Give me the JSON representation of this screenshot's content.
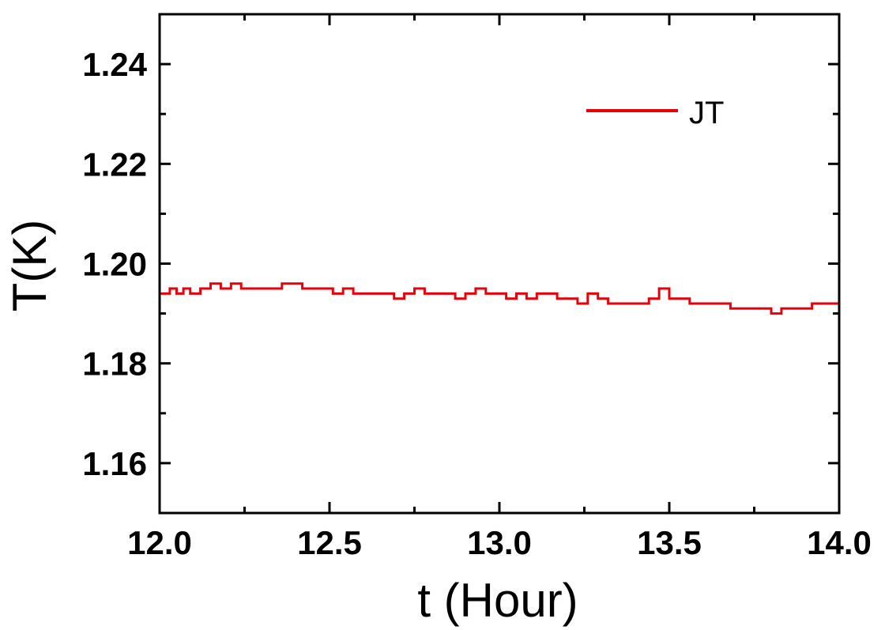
{
  "chart_data": {
    "type": "line",
    "title": "",
    "xlabel": "t (Hour)",
    "ylabel": "T(K)",
    "xlim": [
      12.0,
      14.0
    ],
    "ylim": [
      1.15,
      1.25
    ],
    "x_ticks": [
      12.0,
      12.5,
      13.0,
      13.5,
      14.0
    ],
    "x_tick_labels": [
      "12.0",
      "12.5",
      "13.0",
      "13.5",
      "14.0"
    ],
    "y_ticks": [
      1.16,
      1.18,
      1.2,
      1.22,
      1.24
    ],
    "y_tick_labels": [
      "1.16",
      "1.18",
      "1.20",
      "1.22",
      "1.24"
    ],
    "grid": false,
    "legend_position": "top-right",
    "series": [
      {
        "name": "JT",
        "color": "#e8000b",
        "step": true,
        "x": [
          12.0,
          12.03,
          12.05,
          12.07,
          12.09,
          12.12,
          12.15,
          12.18,
          12.21,
          12.24,
          12.27,
          12.3,
          12.33,
          12.36,
          12.39,
          12.42,
          12.45,
          12.48,
          12.51,
          12.54,
          12.57,
          12.6,
          12.63,
          12.66,
          12.69,
          12.72,
          12.75,
          12.78,
          12.81,
          12.84,
          12.87,
          12.9,
          12.93,
          12.96,
          12.99,
          13.02,
          13.05,
          13.08,
          13.11,
          13.14,
          13.17,
          13.2,
          13.23,
          13.26,
          13.29,
          13.32,
          13.35,
          13.38,
          13.41,
          13.44,
          13.47,
          13.5,
          13.53,
          13.56,
          13.59,
          13.62,
          13.65,
          13.68,
          13.71,
          13.74,
          13.77,
          13.8,
          13.83,
          13.86,
          13.89,
          13.92,
          13.95,
          13.98,
          14.0
        ],
        "y": [
          1.194,
          1.195,
          1.194,
          1.195,
          1.194,
          1.195,
          1.196,
          1.195,
          1.196,
          1.195,
          1.195,
          1.195,
          1.195,
          1.196,
          1.196,
          1.195,
          1.195,
          1.195,
          1.194,
          1.195,
          1.194,
          1.194,
          1.194,
          1.194,
          1.193,
          1.194,
          1.195,
          1.194,
          1.194,
          1.194,
          1.193,
          1.194,
          1.195,
          1.194,
          1.194,
          1.193,
          1.194,
          1.193,
          1.194,
          1.194,
          1.193,
          1.193,
          1.192,
          1.194,
          1.193,
          1.192,
          1.192,
          1.192,
          1.192,
          1.193,
          1.195,
          1.193,
          1.193,
          1.192,
          1.192,
          1.192,
          1.192,
          1.191,
          1.191,
          1.191,
          1.191,
          1.19,
          1.191,
          1.191,
          1.191,
          1.192,
          1.192,
          1.192,
          1.191
        ]
      }
    ]
  }
}
